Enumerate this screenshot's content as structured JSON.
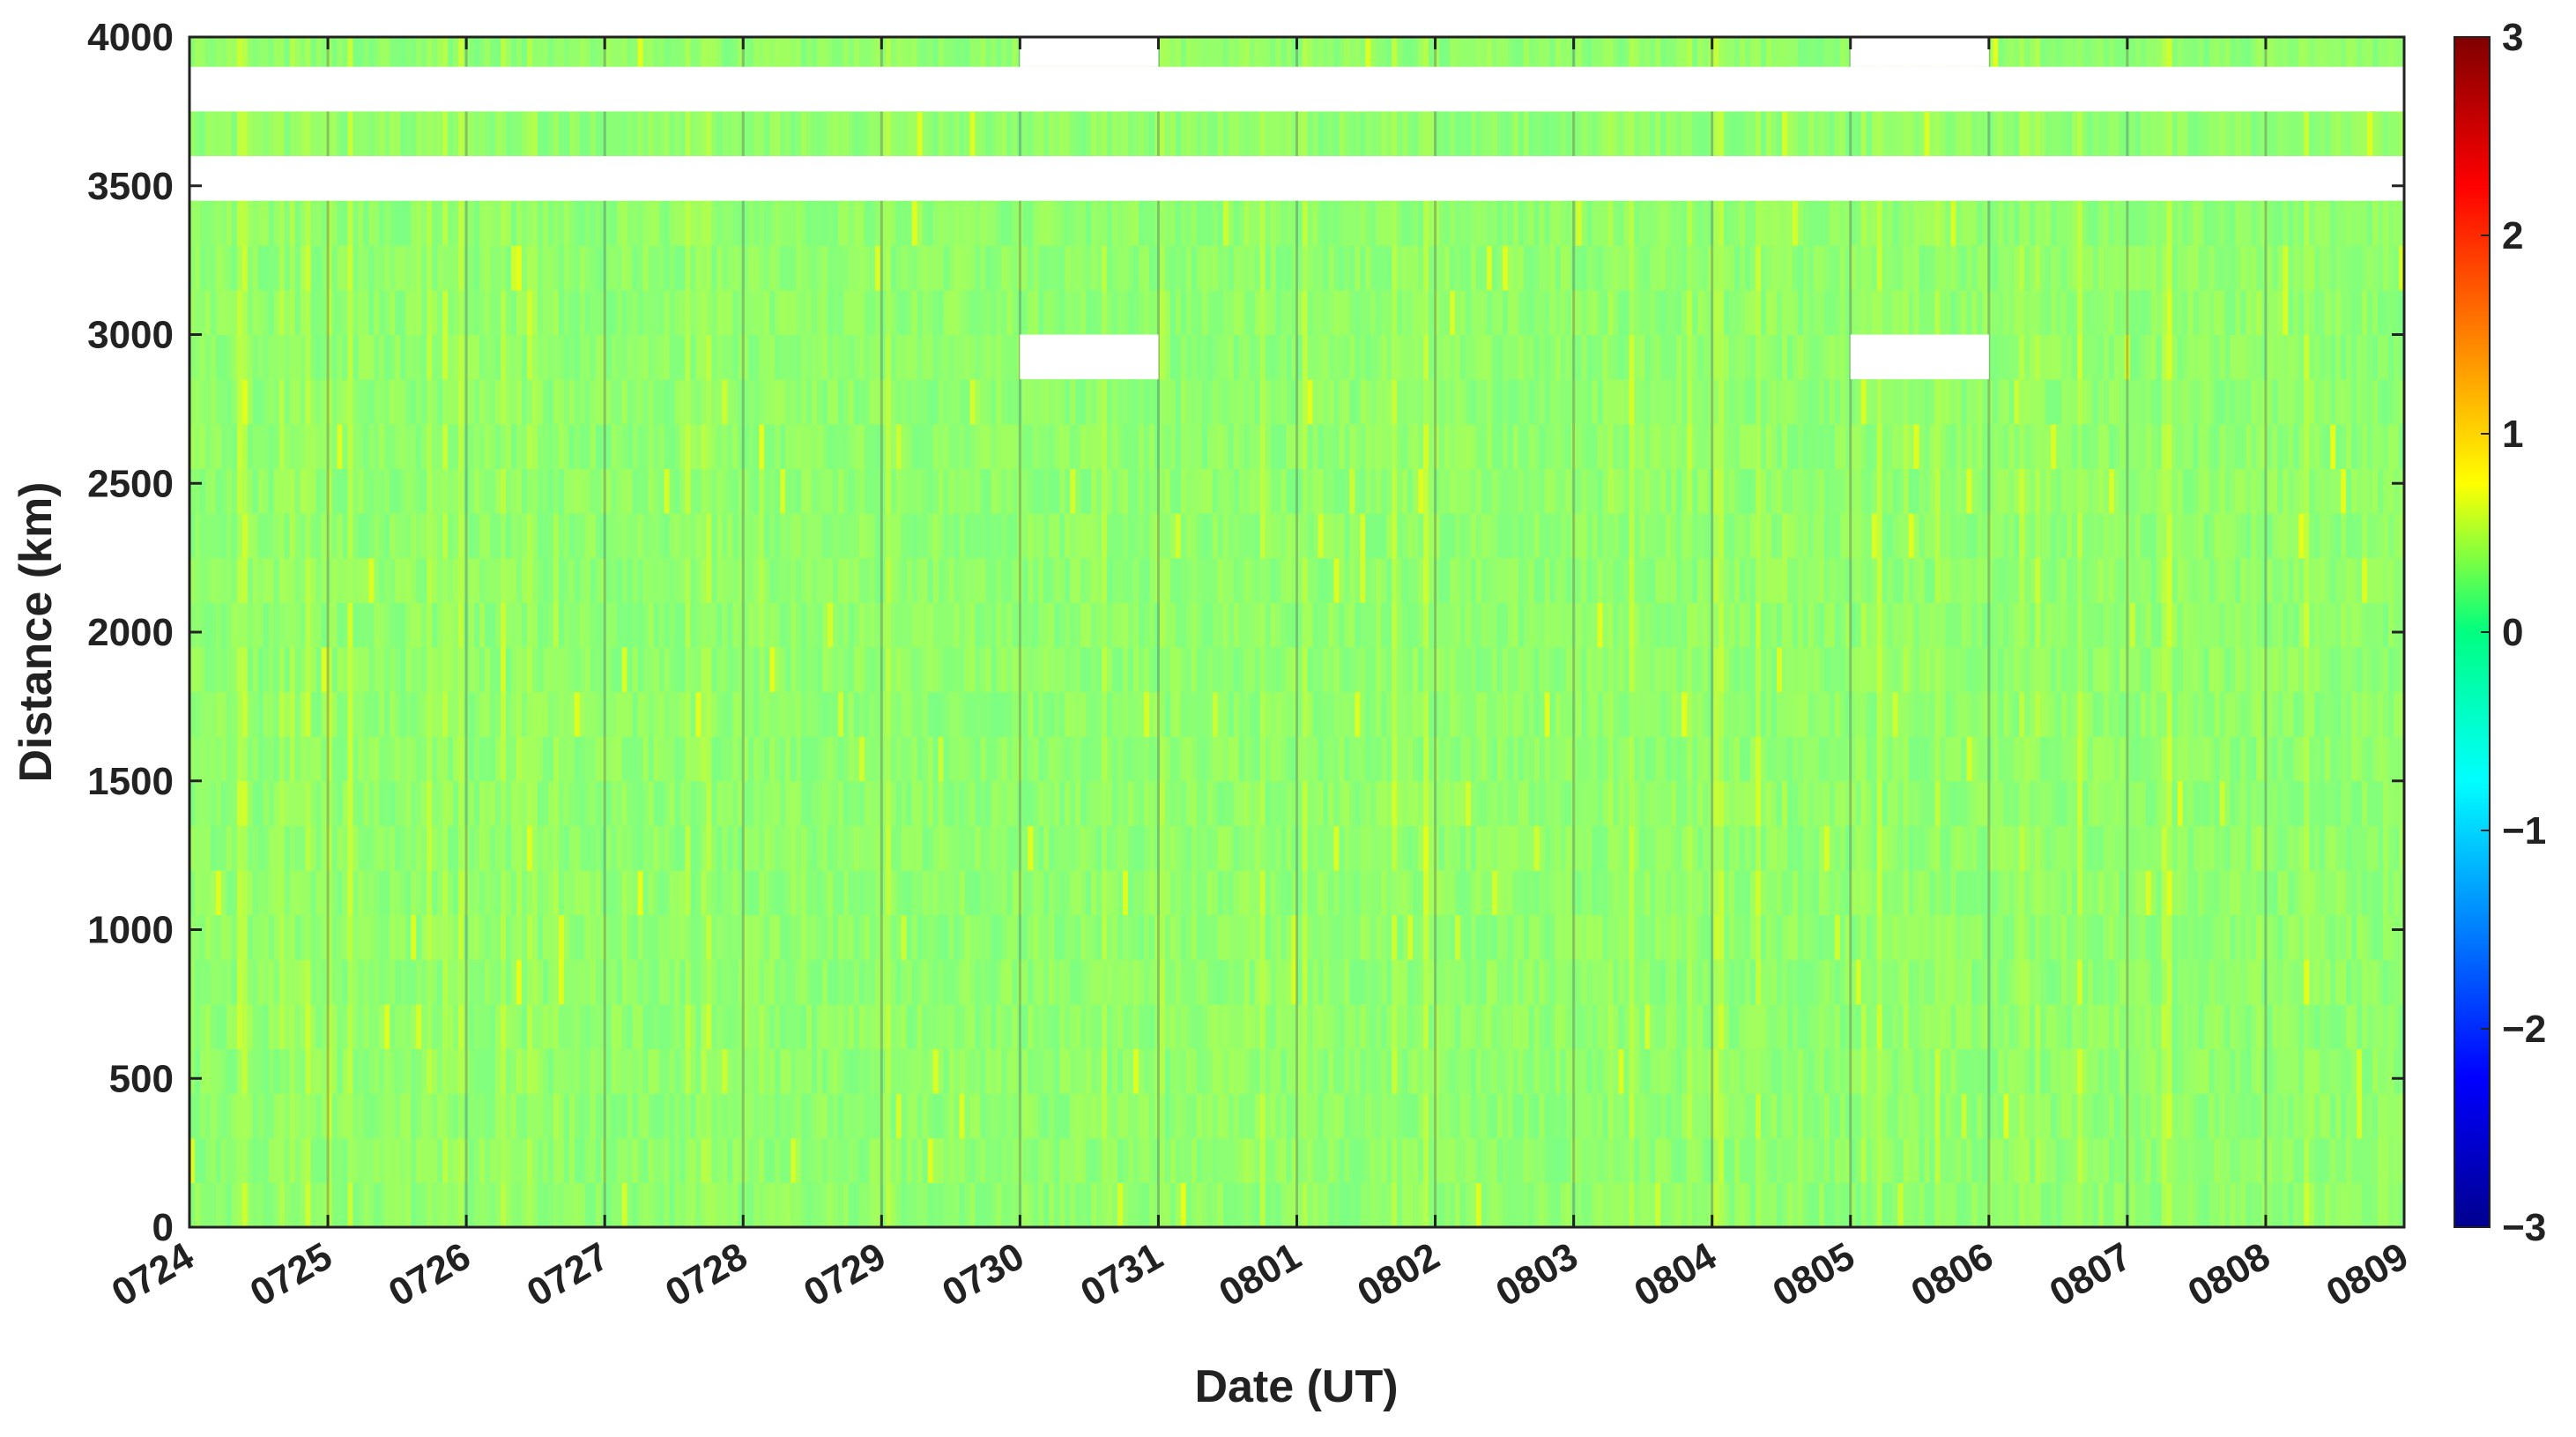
{
  "chart_data": {
    "type": "heatmap",
    "title": "",
    "xlabel": "Date (UT)",
    "ylabel": "Distance (km)",
    "x_categories": [
      "0724",
      "0725",
      "0726",
      "0727",
      "0728",
      "0729",
      "0730",
      "0731",
      "0801",
      "0802",
      "0803",
      "0804",
      "0805",
      "0806",
      "0807",
      "0808",
      "0809"
    ],
    "yticks": [
      0,
      500,
      1000,
      1500,
      2000,
      2500,
      3000,
      3500,
      4000
    ],
    "ylim": [
      0,
      4000
    ],
    "y_bin_km": 150,
    "colorbar": {
      "ticks": [
        3,
        2,
        1,
        0,
        -1,
        -2,
        -3
      ],
      "tick_labels": [
        "3",
        "2",
        "1",
        "0",
        "−1",
        "−2",
        "−3"
      ],
      "range": [
        -3,
        3
      ],
      "colormap": "jet"
    },
    "typical_value": 0.1,
    "value_range_observed": [
      -0.1,
      0.6
    ],
    "missing_data": [
      {
        "day_start": 0,
        "day_end": 16,
        "y_start": 3750,
        "y_end": 3900
      },
      {
        "day_start": 0,
        "day_end": 16,
        "y_start": 3450,
        "y_end": 3600
      },
      {
        "day_start": 6,
        "day_end": 7,
        "y_start": 3900,
        "y_end": 4000
      },
      {
        "day_start": 12,
        "day_end": 13,
        "y_start": 3900,
        "y_end": 4000
      },
      {
        "day_start": 6,
        "day_end": 7,
        "y_start": 2850,
        "y_end": 3000
      },
      {
        "day_start": 12,
        "day_end": 13,
        "y_start": 2850,
        "y_end": 3000
      }
    ],
    "grid": true
  },
  "colors": {
    "field_base": "#00f06a",
    "axis": "#222222",
    "missing": "#ffffff",
    "grid": "#555555"
  }
}
